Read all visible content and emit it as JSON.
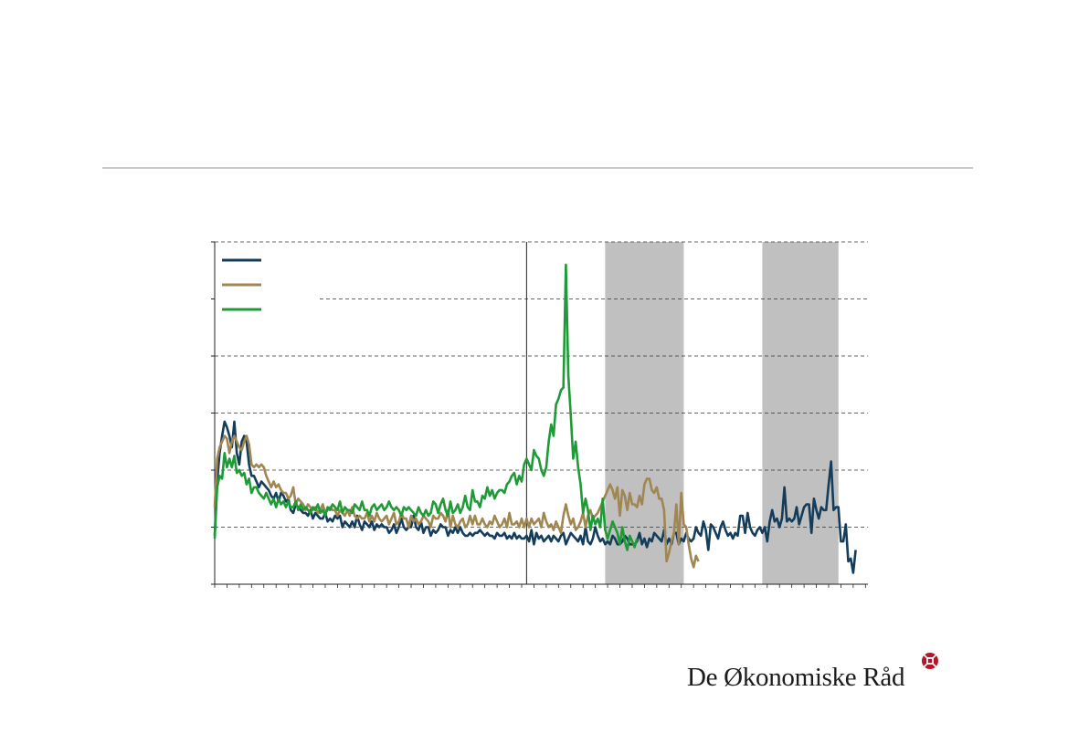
{
  "brand": {
    "name": "De Økonomiske Råd",
    "mark_color": "#b3162b"
  },
  "chart_data": {
    "type": "line",
    "x_index_range": [
      0,
      266
    ],
    "ylim": [
      0,
      6
    ],
    "grid": "horizontal dashed",
    "legend_placement": "top-left",
    "reference_vline_index": 127,
    "shaded_regions": [
      [
        159,
        191
      ],
      [
        223,
        254
      ]
    ],
    "series": [
      {
        "color": "#143d5c",
        "values": [
          0.85,
          1.8,
          2.3,
          2.6,
          2.85,
          2.75,
          2.6,
          2.4,
          2.85,
          2.3,
          2.1,
          2.5,
          2.6,
          2.5,
          2.1,
          1.9,
          1.9,
          1.8,
          1.7,
          1.8,
          1.75,
          1.7,
          1.65,
          1.55,
          1.5,
          1.6,
          1.45,
          1.6,
          1.55,
          1.45,
          1.5,
          1.3,
          1.25,
          1.4,
          1.35,
          1.3,
          1.25,
          1.25,
          1.2,
          1.3,
          1.15,
          1.25,
          1.2,
          1.15,
          1.15,
          1.25,
          1.1,
          1.15,
          1.1,
          1.2,
          1.15,
          1.2,
          1.0,
          1.1,
          1.05,
          1.0,
          1.1,
          1.0,
          1.2,
          1.05,
          0.95,
          1.1,
          1.05,
          1.0,
          1.1,
          0.95,
          1.05,
          1.0,
          1.05,
          1.0,
          1.0,
          0.9,
          0.95,
          1.05,
          0.9,
          1.0,
          1.15,
          1.0,
          0.95,
          1.0,
          1.0,
          1.2,
          1.0,
          0.95,
          1.1,
          0.9,
          1.0,
          1.0,
          0.85,
          0.95,
          0.9,
          0.95,
          1.05,
          1.0,
          1.0,
          0.85,
          0.95,
          0.9,
          1.0,
          0.9,
          1.0,
          0.9,
          0.85,
          0.85,
          0.9,
          0.85,
          0.9,
          0.9,
          0.95,
          0.9,
          0.85,
          0.9,
          0.85,
          0.85,
          0.8,
          0.9,
          0.85,
          0.85,
          0.9,
          0.8,
          0.85,
          0.8,
          0.9,
          0.8,
          0.85,
          0.8,
          0.8,
          0.85,
          0.75,
          0.95,
          0.7,
          0.9,
          0.8,
          0.85,
          0.75,
          0.8,
          0.85,
          0.75,
          0.85,
          0.8,
          0.75,
          0.85,
          0.9,
          0.7,
          0.8,
          0.9,
          0.85,
          0.8,
          0.75,
          0.85,
          0.7,
          1.0,
          0.75,
          0.7,
          0.8,
          1.0,
          0.85,
          0.75,
          0.8,
          0.7,
          0.75,
          0.7,
          0.85,
          0.8,
          0.7,
          0.7,
          0.75,
          0.85,
          0.8,
          0.7,
          0.7,
          0.7,
          0.75,
          0.9,
          0.7,
          0.8,
          0.65,
          0.8,
          0.75,
          0.9,
          0.85,
          0.8,
          0.75,
          0.95,
          0.7,
          0.8,
          0.7,
          0.9,
          0.9,
          0.7,
          0.8,
          0.75,
          0.9,
          0.8,
          0.75,
          0.8,
          1.0,
          0.9,
          0.85,
          1.1,
          0.95,
          0.6,
          1.05,
          1.0,
          0.9,
          0.8,
          1.0,
          1.1,
          0.95,
          0.85,
          0.9,
          0.8,
          0.9,
          0.85,
          1.2,
          1.2,
          0.9,
          1.25,
          1.0,
          0.9,
          0.85,
          0.95,
          1.0,
          0.9,
          1.0,
          0.75,
          1.1,
          1.3,
          1.1,
          1.15,
          1.0,
          1.15,
          1.7,
          1.1,
          1.15,
          1.1,
          1.15,
          1.35,
          1.05,
          1.2,
          1.35,
          1.4,
          1.4,
          0.9,
          1.5,
          1.3,
          1.15,
          1.35,
          1.3,
          1.3,
          1.75,
          2.15,
          1.3,
          1.35,
          1.35,
          0.75,
          0.75,
          1.05,
          0.4,
          0.45,
          0.2,
          0.6
        ]
      },
      {
        "color": "#a08650",
        "values": [
          1.35,
          2.2,
          2.4,
          2.5,
          2.6,
          2.55,
          2.3,
          2.5,
          2.6,
          2.5,
          2.4,
          2.35,
          2.5,
          2.6,
          2.45,
          2.1,
          2.05,
          2.1,
          2.05,
          2.1,
          2.05,
          1.9,
          1.8,
          1.7,
          1.8,
          1.7,
          1.75,
          1.65,
          1.6,
          1.6,
          1.5,
          1.55,
          1.7,
          1.4,
          1.5,
          1.45,
          1.4,
          1.3,
          1.4,
          1.35,
          1.3,
          1.35,
          1.25,
          1.3,
          1.4,
          1.25,
          1.3,
          1.35,
          1.3,
          1.3,
          1.2,
          1.3,
          1.25,
          1.2,
          1.3,
          1.2,
          1.35,
          1.2,
          1.15,
          1.2,
          1.15,
          1.15,
          1.25,
          1.1,
          1.2,
          1.1,
          1.25,
          1.15,
          1.1,
          1.15,
          1.2,
          1.05,
          1.15,
          1.25,
          1.05,
          1.1,
          1.25,
          1.15,
          1.15,
          1.0,
          1.2,
          1.1,
          1.15,
          1.05,
          1.1,
          1.2,
          1.15,
          1.1,
          1.0,
          1.2,
          1.15,
          1.15,
          1.25,
          1.2,
          1.1,
          1.3,
          1.0,
          1.2,
          1.05,
          1.0,
          1.1,
          1.15,
          1.0,
          1.05,
          1.2,
          1.05,
          1.2,
          1.05,
          1.05,
          1.15,
          1.05,
          1.0,
          1.1,
          1.05,
          1.2,
          1.1,
          1.0,
          1.05,
          1.15,
          1.0,
          1.25,
          1.05,
          1.05,
          1.1,
          1.0,
          1.15,
          1.0,
          1.15,
          1.0,
          1.15,
          1.05,
          1.1,
          1.15,
          1.0,
          1.25,
          1.1,
          1.0,
          1.05,
          0.95,
          1.1,
          1.0,
          0.9,
          1.2,
          1.4,
          1.2,
          1.05,
          1.15,
          0.95,
          1.0,
          1.1,
          1.25,
          1.0,
          1.2,
          1.3,
          1.15,
          1.2,
          1.25,
          1.35,
          1.45,
          1.55,
          1.65,
          1.75,
          1.65,
          1.5,
          1.7,
          1.2,
          1.65,
          1.55,
          1.3,
          1.6,
          1.4,
          1.4,
          1.35,
          1.55,
          1.4,
          1.75,
          1.85,
          1.85,
          1.65,
          1.6,
          1.7,
          1.5,
          1.5,
          1.3,
          0.4,
          0.55,
          0.75,
          0.9,
          1.4,
          0.7,
          1.6,
          1.05,
          1.0,
          0.7,
          0.45,
          0.3,
          0.5,
          0.4
        ]
      },
      {
        "color": "#1f9a36",
        "values": [
          0.8,
          1.7,
          1.9,
          1.85,
          2.3,
          2.05,
          2.2,
          2.05,
          2.25,
          1.95,
          2.0,
          1.9,
          1.95,
          1.75,
          1.85,
          1.6,
          1.7,
          1.7,
          1.6,
          1.55,
          1.5,
          1.6,
          1.5,
          1.4,
          1.5,
          1.35,
          1.5,
          1.4,
          1.45,
          1.35,
          1.45,
          1.35,
          1.35,
          1.45,
          1.3,
          1.4,
          1.3,
          1.35,
          1.3,
          1.25,
          1.35,
          1.3,
          1.4,
          1.25,
          1.3,
          1.2,
          1.35,
          1.3,
          1.4,
          1.35,
          1.3,
          1.45,
          1.25,
          1.35,
          1.3,
          1.3,
          1.25,
          1.4,
          1.35,
          1.3,
          1.45,
          1.3,
          1.3,
          1.2,
          1.35,
          1.4,
          1.3,
          1.35,
          1.4,
          1.3,
          1.35,
          1.45,
          1.35,
          1.3,
          1.35,
          1.3,
          1.2,
          1.35,
          1.3,
          1.35,
          1.3,
          1.25,
          1.2,
          1.35,
          1.25,
          1.2,
          1.3,
          1.2,
          1.25,
          1.45,
          1.4,
          1.25,
          1.4,
          1.5,
          1.3,
          1.2,
          1.45,
          1.25,
          1.3,
          1.4,
          1.25,
          1.35,
          1.55,
          1.35,
          1.3,
          1.65,
          1.45,
          1.45,
          1.35,
          1.55,
          1.5,
          1.7,
          1.55,
          1.65,
          1.5,
          1.6,
          1.65,
          1.65,
          1.6,
          1.75,
          1.8,
          1.9,
          1.95,
          1.75,
          1.9,
          1.8,
          2.1,
          2.2,
          2.1,
          2.0,
          2.35,
          2.25,
          2.2,
          2.0,
          1.9,
          2.05,
          2.5,
          2.8,
          2.6,
          3.15,
          3.25,
          3.4,
          3.45,
          5.6,
          3.65,
          2.95,
          2.2,
          2.5,
          2.05,
          1.75,
          1.25,
          1.5,
          1.3,
          0.95,
          1.2,
          1.05,
          1.15,
          1.0,
          1.5,
          0.95,
          0.8,
          0.95,
          1.1,
          1.0,
          0.9,
          0.7,
          1.0,
          0.75,
          0.6,
          0.85,
          0.75,
          0.65,
          0.8
        ]
      }
    ]
  }
}
